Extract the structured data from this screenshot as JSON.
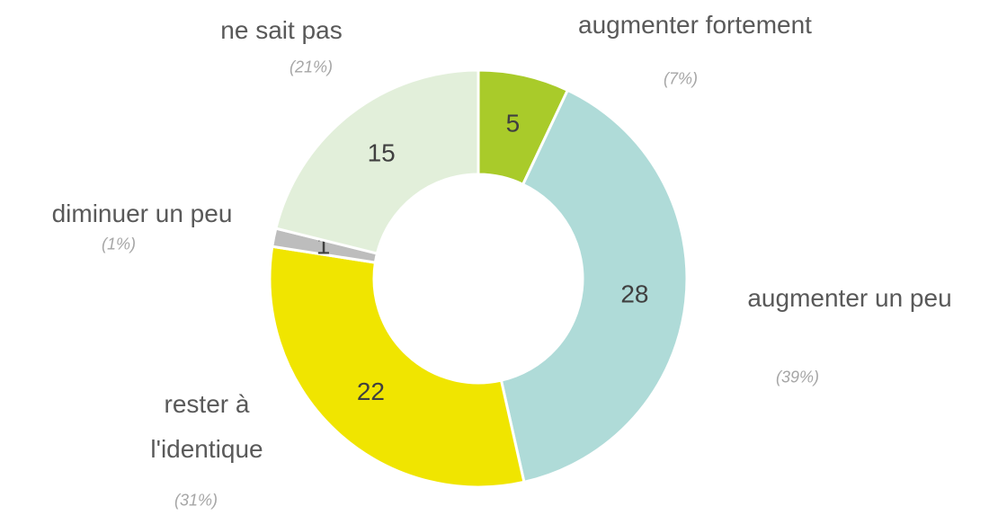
{
  "chart_data": {
    "type": "donut",
    "categories": [
      "augmenter fortement",
      "augmenter un peu",
      "rester à l'identique",
      "diminuer un peu",
      "ne sait pas"
    ],
    "values": [
      5,
      28,
      22,
      1,
      15
    ],
    "percent_labels": [
      "(7%)",
      "(39%)",
      "(31%)",
      "(1%)",
      "(21%)"
    ],
    "colors": [
      "#a9cb2a",
      "#afdbd8",
      "#f0e500",
      "#bdbdbd",
      "#e2efda"
    ]
  }
}
